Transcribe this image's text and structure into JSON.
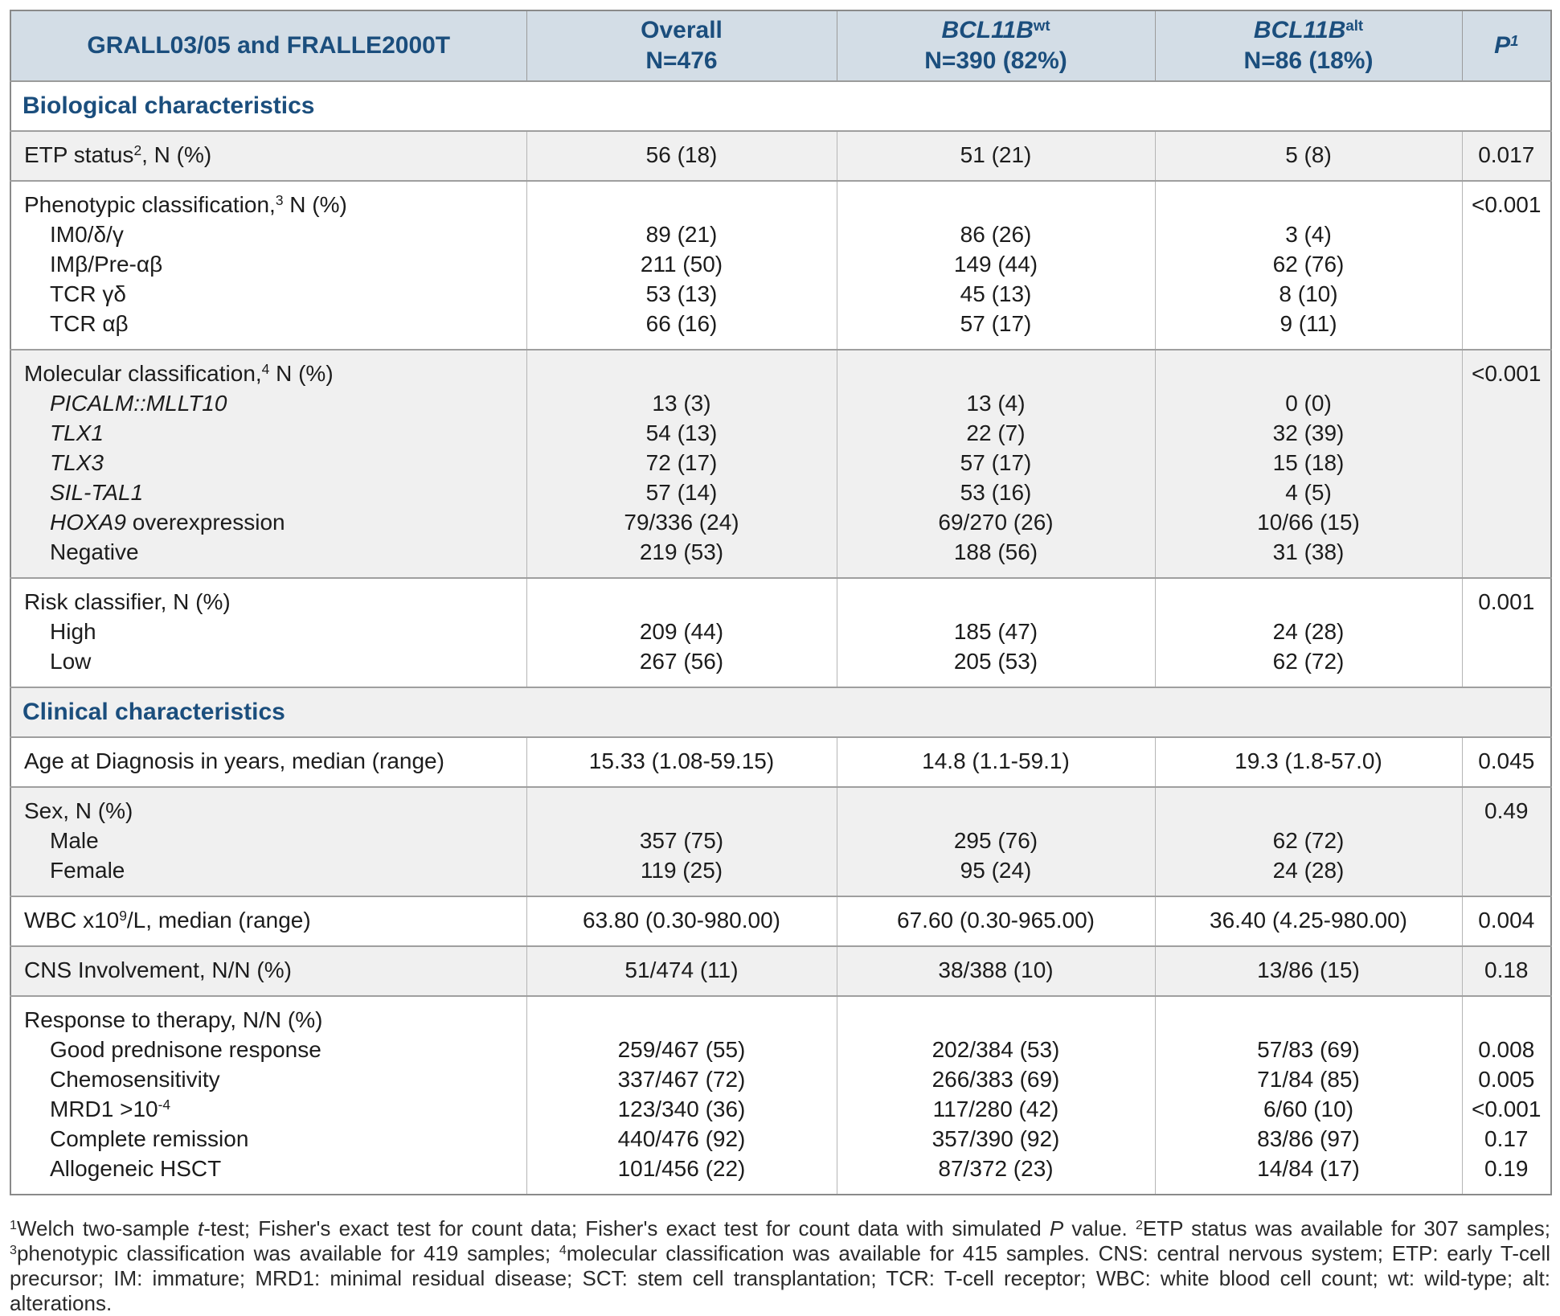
{
  "colors": {
    "accent_blue": "#1b4e7d",
    "header_bg": "#d3dde6",
    "row_shade": "#f0f0f0",
    "border_strong": "#9b9b9b",
    "border_light": "#b5b5b5"
  },
  "table": {
    "title_cell": "GRALL03/05 and FRALLE2000T",
    "columns": [
      {
        "parts": [
          {
            "t": "Overall"
          }
        ],
        "line2": "N=476"
      },
      {
        "parts": [
          {
            "t": "BCL11B",
            "i": true
          },
          {
            "t": "wt",
            "sup": true
          }
        ],
        "line2": "N=390 (82%)"
      },
      {
        "parts": [
          {
            "t": "BCL11B",
            "i": true
          },
          {
            "t": "alt",
            "sup": true
          }
        ],
        "line2": "N=86 (18%)"
      },
      {
        "parts": [
          {
            "t": "P",
            "i": true
          },
          {
            "t": "1",
            "sup": true,
            "i": true
          }
        ],
        "line2": ""
      }
    ],
    "sections": [
      {
        "kind": "section",
        "shade": "white",
        "label": "Biological characteristics"
      },
      {
        "kind": "group",
        "shade": "gray",
        "rows": [
          {
            "indent": false,
            "label": [
              {
                "t": "ETP status"
              },
              {
                "t": "2",
                "sup": true
              },
              {
                "t": ", N (%)"
              }
            ],
            "values": [
              "56 (18)",
              "51 (21)",
              "5 (8)"
            ],
            "p": "0.017"
          }
        ]
      },
      {
        "kind": "group",
        "shade": "white",
        "rows": [
          {
            "indent": false,
            "label": [
              {
                "t": "Phenotypic classification,"
              },
              {
                "t": "3",
                "sup": true
              },
              {
                "t": " N (%)"
              }
            ],
            "values": [
              "",
              "",
              ""
            ],
            "p": "<0.001"
          },
          {
            "indent": true,
            "label": [
              {
                "t": "IM0/δ/γ"
              }
            ],
            "values": [
              "89 (21)",
              "86 (26)",
              "3 (4)"
            ],
            "p": ""
          },
          {
            "indent": true,
            "label": [
              {
                "t": "IMβ/Pre-αβ"
              }
            ],
            "values": [
              "211 (50)",
              "149 (44)",
              "62 (76)"
            ],
            "p": ""
          },
          {
            "indent": true,
            "label": [
              {
                "t": "TCR γδ"
              }
            ],
            "values": [
              "53 (13)",
              "45 (13)",
              "8 (10)"
            ],
            "p": ""
          },
          {
            "indent": true,
            "label": [
              {
                "t": "TCR αβ"
              }
            ],
            "values": [
              "66 (16)",
              "57 (17)",
              "9 (11)"
            ],
            "p": ""
          }
        ]
      },
      {
        "kind": "group",
        "shade": "gray",
        "rows": [
          {
            "indent": false,
            "label": [
              {
                "t": "Molecular classification,"
              },
              {
                "t": "4",
                "sup": true
              },
              {
                "t": " N (%)"
              }
            ],
            "values": [
              "",
              "",
              ""
            ],
            "p": "<0.001"
          },
          {
            "indent": true,
            "label": [
              {
                "t": "PICALM::MLLT10",
                "i": true
              }
            ],
            "values": [
              "13 (3)",
              "13 (4)",
              "0 (0)"
            ],
            "p": ""
          },
          {
            "indent": true,
            "label": [
              {
                "t": "TLX1",
                "i": true
              }
            ],
            "values": [
              "54 (13)",
              "22 (7)",
              "32 (39)"
            ],
            "p": ""
          },
          {
            "indent": true,
            "label": [
              {
                "t": "TLX3",
                "i": true
              }
            ],
            "values": [
              "72 (17)",
              "57 (17)",
              "15 (18)"
            ],
            "p": ""
          },
          {
            "indent": true,
            "label": [
              {
                "t": "SIL-TAL1",
                "i": true
              }
            ],
            "values": [
              "57 (14)",
              "53 (16)",
              "4 (5)"
            ],
            "p": ""
          },
          {
            "indent": true,
            "label": [
              {
                "t": "HOXA9",
                "i": true
              },
              {
                "t": " overexpression"
              }
            ],
            "values": [
              "79/336 (24)",
              "69/270 (26)",
              "10/66 (15)"
            ],
            "p": ""
          },
          {
            "indent": true,
            "label": [
              {
                "t": "Negative"
              }
            ],
            "values": [
              "219 (53)",
              "188 (56)",
              "31 (38)"
            ],
            "p": ""
          }
        ]
      },
      {
        "kind": "group",
        "shade": "white",
        "rows": [
          {
            "indent": false,
            "label": [
              {
                "t": "Risk classifier, N (%)"
              }
            ],
            "values": [
              "",
              "",
              ""
            ],
            "p": "0.001"
          },
          {
            "indent": true,
            "label": [
              {
                "t": "High"
              }
            ],
            "values": [
              "209 (44)",
              "185 (47)",
              "24 (28)"
            ],
            "p": ""
          },
          {
            "indent": true,
            "label": [
              {
                "t": "Low"
              }
            ],
            "values": [
              "267 (56)",
              "205 (53)",
              "62 (72)"
            ],
            "p": ""
          }
        ]
      },
      {
        "kind": "section",
        "shade": "gray",
        "label": "Clinical characteristics"
      },
      {
        "kind": "group",
        "shade": "white",
        "rows": [
          {
            "indent": false,
            "label": [
              {
                "t": "Age at Diagnosis in years, median (range)"
              }
            ],
            "values": [
              "15.33 (1.08-59.15)",
              "14.8 (1.1-59.1)",
              "19.3 (1.8-57.0)"
            ],
            "p": "0.045"
          }
        ]
      },
      {
        "kind": "group",
        "shade": "gray",
        "rows": [
          {
            "indent": false,
            "label": [
              {
                "t": "Sex, N (%)"
              }
            ],
            "values": [
              "",
              "",
              ""
            ],
            "p": "0.49"
          },
          {
            "indent": true,
            "label": [
              {
                "t": "Male"
              }
            ],
            "values": [
              "357 (75)",
              "295 (76)",
              "62 (72)"
            ],
            "p": ""
          },
          {
            "indent": true,
            "label": [
              {
                "t": "Female"
              }
            ],
            "values": [
              "119 (25)",
              "95 (24)",
              "24 (28)"
            ],
            "p": ""
          }
        ]
      },
      {
        "kind": "group",
        "shade": "white",
        "rows": [
          {
            "indent": false,
            "label": [
              {
                "t": "WBC x10"
              },
              {
                "t": "9",
                "sup": true
              },
              {
                "t": "/L, median (range)"
              }
            ],
            "values": [
              "63.80 (0.30-980.00)",
              "67.60 (0.30-965.00)",
              "36.40 (4.25-980.00)"
            ],
            "p": "0.004"
          }
        ]
      },
      {
        "kind": "group",
        "shade": "gray",
        "rows": [
          {
            "indent": false,
            "label": [
              {
                "t": "CNS Involvement, N/N (%)"
              }
            ],
            "values": [
              "51/474 (11)",
              "38/388 (10)",
              "13/86 (15)"
            ],
            "p": "0.18"
          }
        ]
      },
      {
        "kind": "group",
        "shade": "white",
        "rows": [
          {
            "indent": false,
            "label": [
              {
                "t": "Response to therapy, N/N (%)"
              }
            ],
            "values": [
              "",
              "",
              ""
            ],
            "p": ""
          },
          {
            "indent": true,
            "label": [
              {
                "t": "Good prednisone response"
              }
            ],
            "values": [
              "259/467 (55)",
              "202/384 (53)",
              "57/83 (69)"
            ],
            "p": "0.008"
          },
          {
            "indent": true,
            "label": [
              {
                "t": "Chemosensitivity"
              }
            ],
            "values": [
              "337/467 (72)",
              "266/383 (69)",
              "71/84 (85)"
            ],
            "p": "0.005"
          },
          {
            "indent": true,
            "label": [
              {
                "t": "MRD1 >10"
              },
              {
                "t": "-4",
                "sup": true
              }
            ],
            "values": [
              "123/340 (36)",
              "117/280 (42)",
              "6/60 (10)"
            ],
            "p": "<0.001"
          },
          {
            "indent": true,
            "label": [
              {
                "t": "Complete remission"
              }
            ],
            "values": [
              "440/476 (92)",
              "357/390 (92)",
              "83/86 (97)"
            ],
            "p": "0.17"
          },
          {
            "indent": true,
            "label": [
              {
                "t": "Allogeneic HSCT"
              }
            ],
            "values": [
              "101/456 (22)",
              "87/372 (23)",
              "14/84 (17)"
            ],
            "p": "0.19"
          }
        ]
      }
    ]
  },
  "footnote": {
    "parts": [
      {
        "t": "1",
        "sup": true
      },
      {
        "t": "Welch two-sample "
      },
      {
        "t": "t",
        "i": true
      },
      {
        "t": "-test; Fisher's exact test for count data; Fisher's exact test for count data with simulated "
      },
      {
        "t": "P",
        "i": true
      },
      {
        "t": " value. "
      },
      {
        "t": "2",
        "sup": true
      },
      {
        "t": "ETP status was available for 307 samples; "
      },
      {
        "t": "3",
        "sup": true
      },
      {
        "t": "phenotypic classification was available for 419 samples; "
      },
      {
        "t": "4",
        "sup": true
      },
      {
        "t": "molecular classification was available for 415 samples. CNS: central nervous system; ETP: early T-cell precursor; IM: immature; MRD1: minimal residual disease; SCT: stem cell transplantation; TCR: T-cell receptor; WBC: white blood cell count; wt: wild-type; alt: alterations."
      }
    ]
  }
}
